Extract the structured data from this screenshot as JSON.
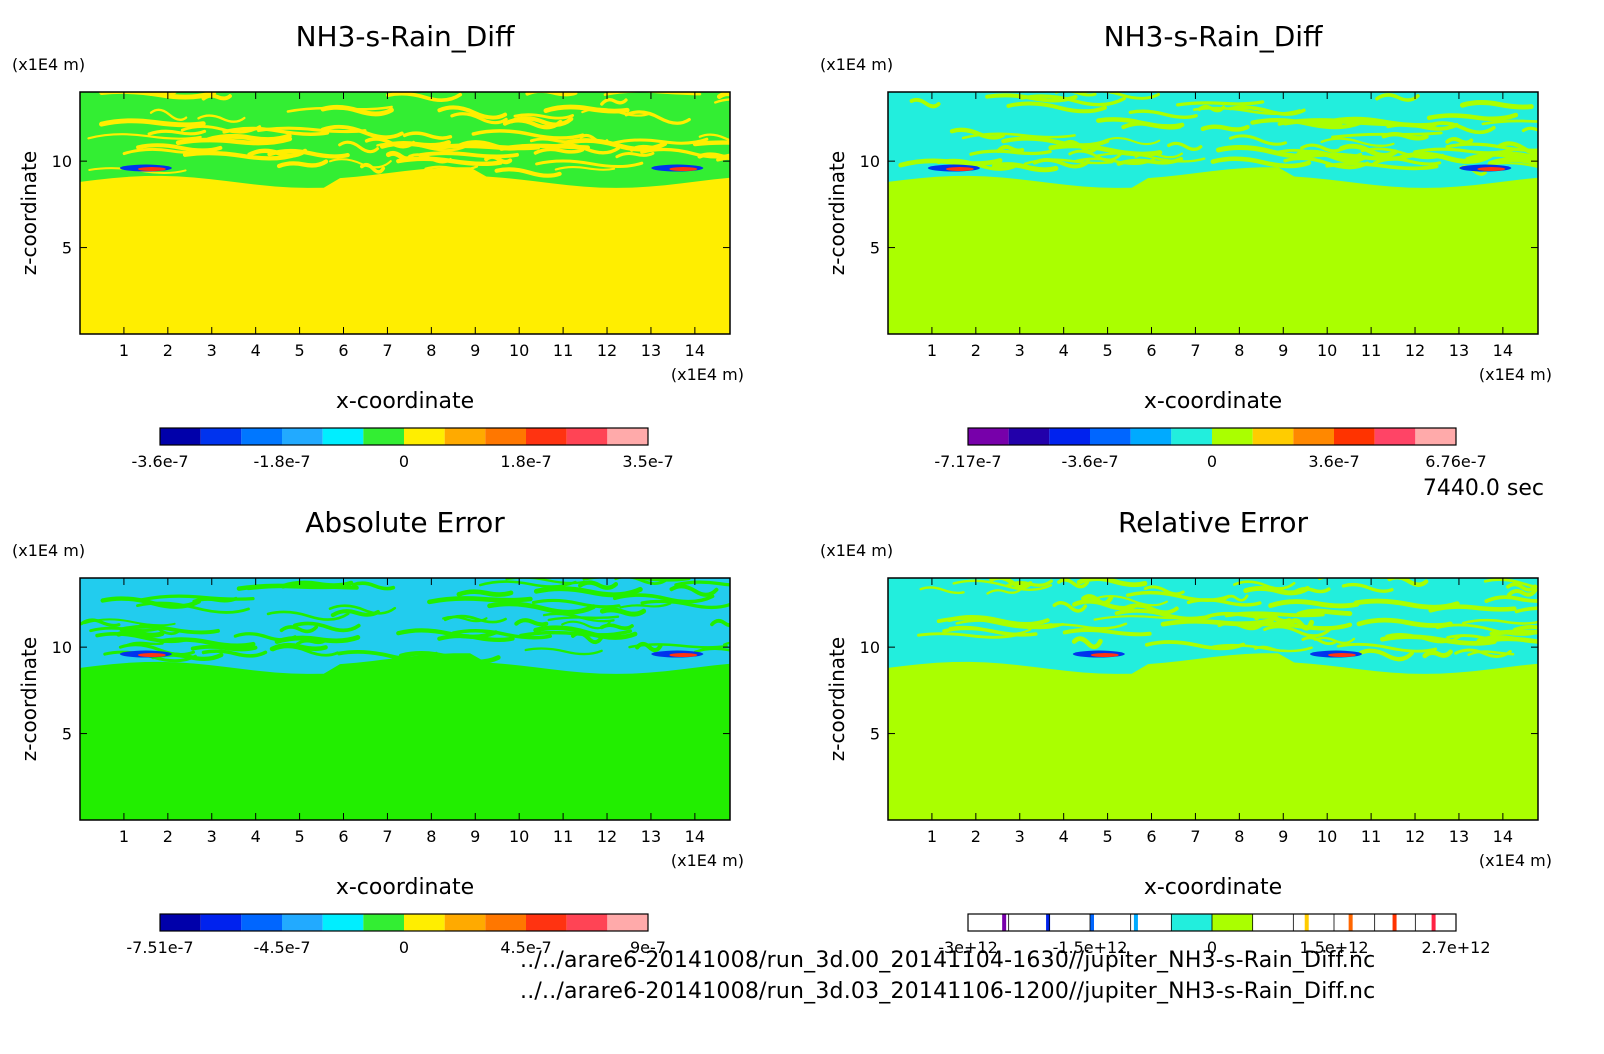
{
  "time_label": "7440.0 sec",
  "footer": {
    "line1": "../../arare6-20141008/run_3d.00_20141104-1630//jupiter_NH3-s-Rain_Diff.nc",
    "line2": "../../arare6-20141008/run_3d.03_20141106-1200//jupiter_NH3-s-Rain_Diff.nc"
  },
  "chart_data": [
    {
      "type": "heatmap",
      "title": "NH3-s-Rain_Diff",
      "xlabel": "x-coordinate",
      "ylabel": "z-coordinate",
      "x_unit": "(x1E4 m)",
      "y_unit": "(x1E4 m)",
      "xlim": [
        0,
        14.8
      ],
      "ylim": [
        0,
        14
      ],
      "x_ticks": [
        "1",
        "2",
        "3",
        "4",
        "5",
        "6",
        "7",
        "8",
        "9",
        "10",
        "11",
        "12",
        "13",
        "14"
      ],
      "y_ticks": [
        "5",
        "10"
      ],
      "background_color": "#ffee00",
      "band_color": "#33ee33",
      "band_z_range": [
        8.8,
        14
      ],
      "colorbar": {
        "tick_labels": [
          "-3.6e-7",
          "-1.8e-7",
          "0",
          "1.8e-7",
          "3.5e-7"
        ],
        "colors": [
          "#0000aa",
          "#0033ee",
          "#0077ff",
          "#22aaff",
          "#00eeff",
          "#33ee33",
          "#ffee00",
          "#ffaa00",
          "#ff7700",
          "#ff3311",
          "#ff4455",
          "#ffaaaa"
        ]
      }
    },
    {
      "type": "heatmap",
      "title": "NH3-s-Rain_Diff",
      "xlabel": "x-coordinate",
      "ylabel": "z-coordinate",
      "x_unit": "(x1E4 m)",
      "y_unit": "(x1E4 m)",
      "xlim": [
        0,
        14.8
      ],
      "ylim": [
        0,
        14
      ],
      "x_ticks": [
        "1",
        "2",
        "3",
        "4",
        "5",
        "6",
        "7",
        "8",
        "9",
        "10",
        "11",
        "12",
        "13",
        "14"
      ],
      "y_ticks": [
        "5",
        "10"
      ],
      "background_color": "#aaff00",
      "band_color": "#22eedd",
      "band_z_range": [
        8.8,
        14
      ],
      "colorbar": {
        "tick_labels": [
          "-7.17e-7",
          "-3.6e-7",
          "0",
          "3.6e-7",
          "6.76e-7"
        ],
        "colors": [
          "#7700aa",
          "#2200aa",
          "#0022ee",
          "#0066ff",
          "#00aaff",
          "#22eedd",
          "#aaff00",
          "#ffcc00",
          "#ff8800",
          "#ff3300",
          "#ff4466",
          "#ffaaaa"
        ]
      }
    },
    {
      "type": "heatmap",
      "title": "Absolute Error",
      "xlabel": "x-coordinate",
      "ylabel": "z-coordinate",
      "x_unit": "(x1E4 m)",
      "y_unit": "(x1E4 m)",
      "xlim": [
        0,
        14.8
      ],
      "ylim": [
        0,
        14
      ],
      "x_ticks": [
        "1",
        "2",
        "3",
        "4",
        "5",
        "6",
        "7",
        "8",
        "9",
        "10",
        "11",
        "12",
        "13",
        "14"
      ],
      "y_ticks": [
        "5",
        "10"
      ],
      "background_color": "#22ee00",
      "band_color": "#22ccee",
      "band_z_range": [
        8.8,
        14
      ],
      "colorbar": {
        "tick_labels": [
          "-7.51e-7",
          "-4.5e-7",
          "0",
          "4.5e-7",
          "9e-7"
        ],
        "colors": [
          "#0000aa",
          "#0022ee",
          "#0066ff",
          "#22aaff",
          "#00eeff",
          "#33ee33",
          "#ffee00",
          "#ffaa00",
          "#ff7700",
          "#ff3311",
          "#ff4455",
          "#ffaaaa"
        ]
      }
    },
    {
      "type": "heatmap",
      "title": "Relative Error",
      "xlabel": "x-coordinate",
      "ylabel": "z-coordinate",
      "x_unit": "(x1E4 m)",
      "y_unit": "(x1E4 m)",
      "xlim": [
        0,
        14.8
      ],
      "ylim": [
        0,
        14
      ],
      "x_ticks": [
        "1",
        "2",
        "3",
        "4",
        "5",
        "6",
        "7",
        "8",
        "9",
        "10",
        "11",
        "12",
        "13",
        "14"
      ],
      "y_ticks": [
        "5",
        "10"
      ],
      "background_color": "#aaff00",
      "band_color": "#22eedd",
      "band_z_range": [
        8.8,
        14
      ],
      "colorbar": {
        "tick_labels": [
          "-3e+12",
          "-1.5e+12",
          "0",
          "1.5e+12",
          "2.7e+12"
        ],
        "colors": [
          "#ffffff",
          "#ffffff",
          "#ffffff",
          "#ffffff",
          "#ffffff",
          "#22eedd",
          "#aaff00",
          "#ffffff",
          "#ffffff",
          "#ffffff",
          "#ffffff",
          "#ffffff"
        ],
        "marks": [
          "#7700aa",
          "#0022ee",
          "#0066ff",
          "#00aaff",
          "#ffcc00",
          "#ff6600",
          "#ff3300",
          "#ff2244"
        ]
      }
    }
  ]
}
